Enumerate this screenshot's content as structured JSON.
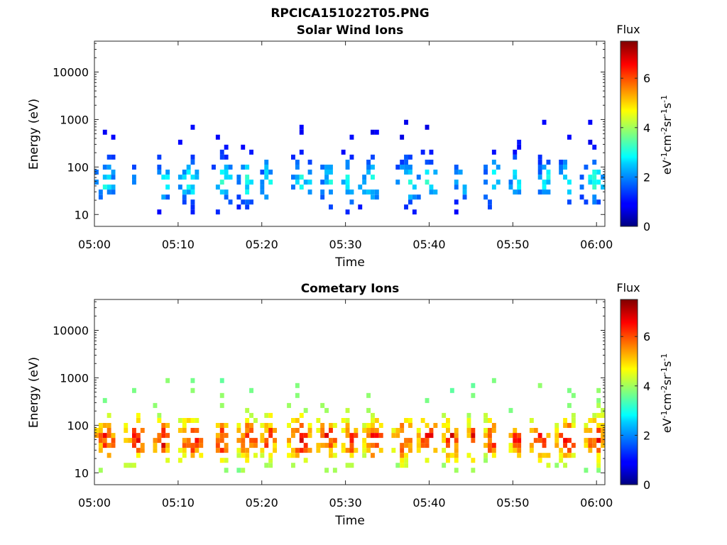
{
  "figure": {
    "title": "RPCICA151022T05.PNG"
  },
  "colorbar": {
    "label": "Flux",
    "unit_label": "eV-1cm-2sr-1s-1",
    "range": [
      0,
      7.5
    ],
    "ticks": [
      "0",
      "2",
      "4",
      "6"
    ],
    "colormap": "jet"
  },
  "chart_data": [
    {
      "type": "heatmap",
      "title": "Solar Wind Ions",
      "xlabel": "Time",
      "ylabel": "Energy (eV)",
      "x_ticks": [
        "05:00",
        "05:10",
        "05:20",
        "05:30",
        "05:40",
        "05:50",
        "06:00"
      ],
      "xlim_minutes": [
        0,
        61
      ],
      "y_ticks": [
        "10",
        "100",
        "1000",
        "10000"
      ],
      "ylim_log10": [
        0.75,
        4.65
      ],
      "y_scale": "log",
      "active_windows_minutes": [
        [
          0,
          2.2
        ],
        [
          4.5,
          5
        ],
        [
          7.5,
          9
        ],
        [
          10,
          12.5
        ],
        [
          14,
          16.5
        ],
        [
          17,
          19
        ],
        [
          19.8,
          21.2
        ],
        [
          23.5,
          25.8
        ],
        [
          27,
          28.8
        ],
        [
          29.5,
          31
        ],
        [
          31.5,
          34
        ],
        [
          36,
          38.5
        ],
        [
          38.5,
          41
        ],
        [
          43,
          44.5
        ],
        [
          46.5,
          48.5
        ],
        [
          49.5,
          51
        ],
        [
          53,
          54.5
        ],
        [
          55,
          57
        ],
        [
          58,
          60.8
        ]
      ],
      "flux_peak": 3.5,
      "flux_range": [
        0,
        3.5
      ]
    },
    {
      "type": "heatmap",
      "title": "Cometary Ions",
      "xlabel": "Time",
      "ylabel": "Energy (eV)",
      "x_ticks": [
        "05:00",
        "05:10",
        "05:20",
        "05:30",
        "05:40",
        "05:50",
        "06:00"
      ],
      "xlim_minutes": [
        0,
        61
      ],
      "y_ticks": [
        "10",
        "100",
        "1000",
        "10000"
      ],
      "ylim_log10": [
        0.75,
        4.65
      ],
      "y_scale": "log",
      "active_windows_minutes": [
        [
          0,
          2.5
        ],
        [
          3.5,
          6
        ],
        [
          7,
          9
        ],
        [
          10,
          13
        ],
        [
          14,
          16
        ],
        [
          17,
          19.5
        ],
        [
          19.8,
          21.5
        ],
        [
          23,
          26
        ],
        [
          26.5,
          28.8
        ],
        [
          29.5,
          31.5
        ],
        [
          32,
          34.5
        ],
        [
          35.5,
          38
        ],
        [
          38.5,
          41
        ],
        [
          41.5,
          43.5
        ],
        [
          44.5,
          45.5
        ],
        [
          46.5,
          48
        ],
        [
          49.5,
          51
        ],
        [
          52,
          54.5
        ],
        [
          55,
          57.5
        ],
        [
          58.5,
          61
        ]
      ],
      "flux_peak": 7.2,
      "flux_range": [
        2.5,
        7.2
      ]
    }
  ]
}
